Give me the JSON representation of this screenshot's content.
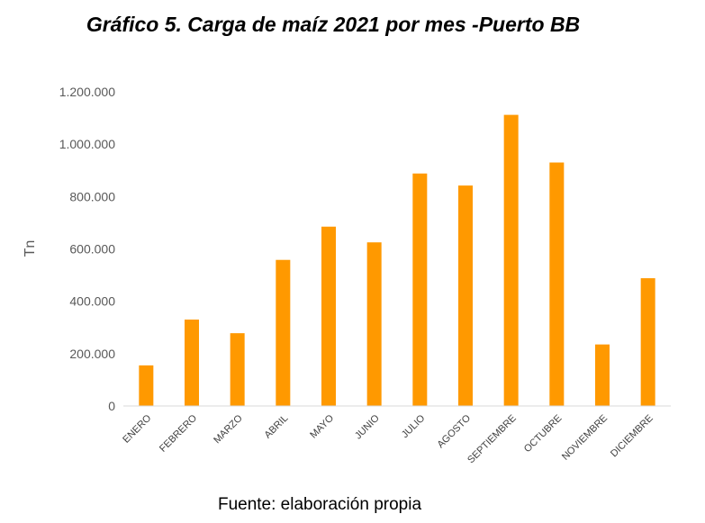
{
  "chart_data": {
    "type": "bar",
    "title": "Gráfico 5. Carga de maíz 2021 por mes -Puerto BB",
    "ylabel": "Tn",
    "xlabel": "",
    "categories": [
      "ENERO",
      "FEBRERO",
      "MARZO",
      "ABRIL",
      "MAYO",
      "JUNIO",
      "JULIO",
      "AGOSTO",
      "SEPTIEMBRE",
      "OCTUBRE",
      "NOVIEMBRE",
      "DICIEMBRE"
    ],
    "values": [
      155000,
      330000,
      278000,
      558000,
      685000,
      625000,
      888000,
      842000,
      1112000,
      930000,
      235000,
      488000
    ],
    "ylim": [
      0,
      1200000
    ],
    "yticks": [
      0,
      200000,
      400000,
      600000,
      800000,
      1000000,
      1200000
    ],
    "ytick_labels": [
      "0",
      "200.000",
      "400.000",
      "600.000",
      "800.000",
      "1.000.000",
      "1.200.000"
    ],
    "grid": false,
    "legend": "none",
    "bar_color": "#FF9900"
  },
  "footer": {
    "source": "Fuente: elaboración propia"
  }
}
